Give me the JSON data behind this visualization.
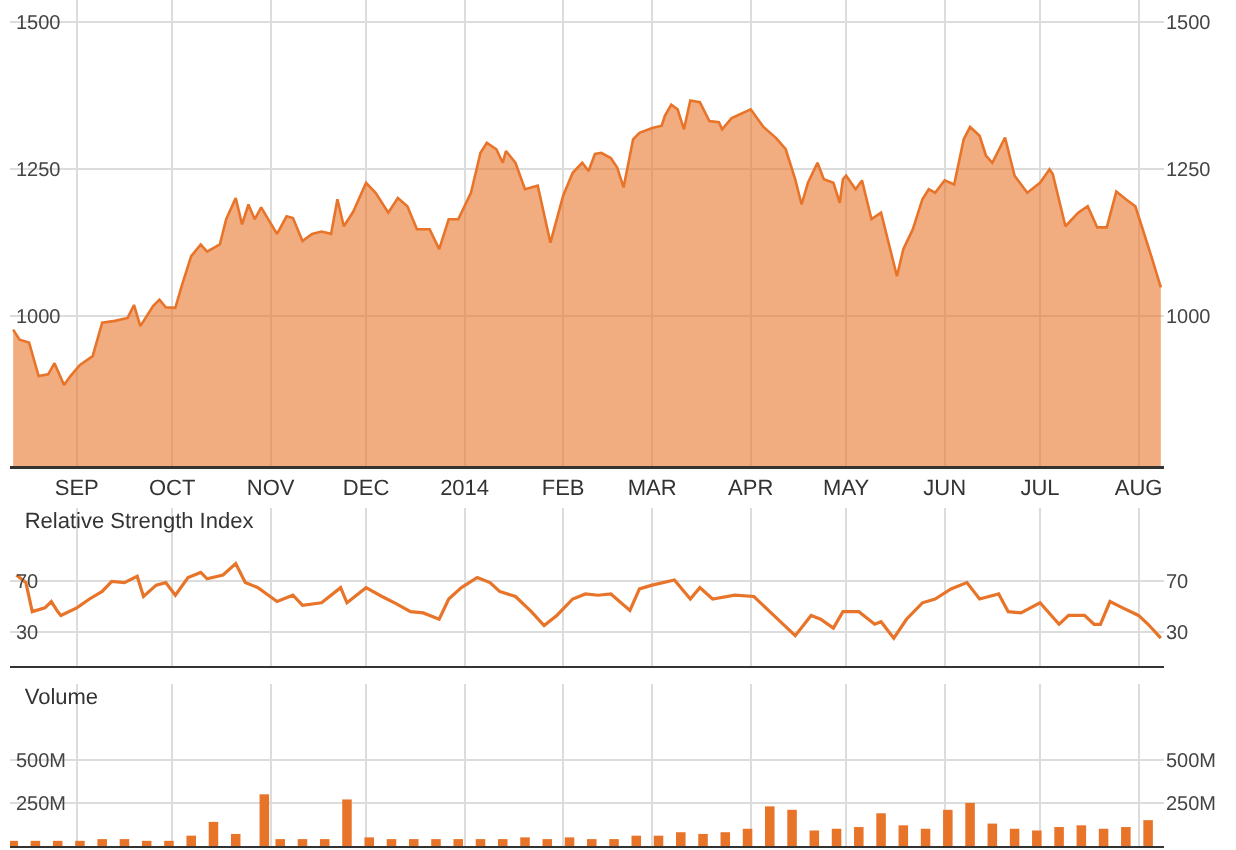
{
  "chart_data": [
    {
      "type": "area",
      "xlim": [
        "2013-08-11",
        "2014-08-09"
      ],
      "ylim": [
        745,
        1538
      ],
      "yticks": [
        1000,
        1250,
        1500
      ],
      "y2lim": [
        745,
        1538
      ],
      "y2ticks": [
        1000,
        1250,
        1500
      ],
      "grid": true,
      "xticks": [
        {
          "value": "2013-09-01",
          "label": "SEP"
        },
        {
          "value": "2013-10-01",
          "label": "OCT"
        },
        {
          "value": "2013-11-01",
          "label": "NOV"
        },
        {
          "value": "2013-12-01",
          "label": "DEC"
        },
        {
          "value": "2014-01-01",
          "label": "2014"
        },
        {
          "value": "2014-02-01",
          "label": "FEB"
        },
        {
          "value": "2014-03-01",
          "label": "MAR"
        },
        {
          "value": "2014-04-01",
          "label": "APR"
        },
        {
          "value": "2014-05-01",
          "label": "MAY"
        },
        {
          "value": "2014-06-01",
          "label": "JUN"
        },
        {
          "value": "2014-07-01",
          "label": "JUL"
        },
        {
          "value": "2014-08-01",
          "label": "AUG"
        }
      ],
      "series": [
        {
          "color": "#e8742a",
          "x": [
            "2013-08-12",
            "2013-08-14",
            "2013-08-17",
            "2013-08-20",
            "2013-08-23",
            "2013-08-25",
            "2013-08-28",
            "2013-08-30",
            "2013-09-02",
            "2013-09-06",
            "2013-09-09",
            "2013-09-13",
            "2013-09-17",
            "2013-09-19",
            "2013-09-21",
            "2013-09-25",
            "2013-09-27",
            "2013-09-29",
            "2013-10-02",
            "2013-10-04",
            "2013-10-07",
            "2013-10-10",
            "2013-10-12",
            "2013-10-16",
            "2013-10-18",
            "2013-10-21",
            "2013-10-23",
            "2013-10-25",
            "2013-10-27",
            "2013-10-29",
            "2013-11-03",
            "2013-11-06",
            "2013-11-08",
            "2013-11-11",
            "2013-11-14",
            "2013-11-17",
            "2013-11-20",
            "2013-11-22",
            "2013-11-24",
            "2013-11-27",
            "2013-12-01",
            "2013-12-04",
            "2013-12-08",
            "2013-12-11",
            "2013-12-14",
            "2013-12-17",
            "2013-12-21",
            "2013-12-24",
            "2013-12-27",
            "2013-12-30",
            "2014-01-03",
            "2014-01-06",
            "2014-01-08",
            "2014-01-11",
            "2014-01-13",
            "2014-01-14",
            "2014-01-17",
            "2014-01-20",
            "2014-01-24",
            "2014-01-28",
            "2014-02-01",
            "2014-02-04",
            "2014-02-07",
            "2014-02-09",
            "2014-02-11",
            "2014-02-13",
            "2014-02-16",
            "2014-02-18",
            "2014-02-20",
            "2014-02-23",
            "2014-02-25",
            "2014-03-01",
            "2014-03-04",
            "2014-03-05",
            "2014-03-07",
            "2014-03-09",
            "2014-03-11",
            "2014-03-13",
            "2014-03-16",
            "2014-03-19",
            "2014-03-22",
            "2014-03-23",
            "2014-03-26",
            "2014-04-01",
            "2014-04-05",
            "2014-04-09",
            "2014-04-12",
            "2014-04-15",
            "2014-04-17",
            "2014-04-19",
            "2014-04-22",
            "2014-04-24",
            "2014-04-27",
            "2014-04-29",
            "2014-04-30",
            "2014-05-01",
            "2014-05-04",
            "2014-05-06",
            "2014-05-09",
            "2014-05-12",
            "2014-05-17",
            "2014-05-19",
            "2014-05-22",
            "2014-05-25",
            "2014-05-27",
            "2014-05-29",
            "2014-06-01",
            "2014-06-04",
            "2014-06-07",
            "2014-06-09",
            "2014-06-12",
            "2014-06-14",
            "2014-06-16",
            "2014-06-20",
            "2014-06-23",
            "2014-06-27",
            "2014-07-01",
            "2014-07-04",
            "2014-07-05",
            "2014-07-09",
            "2014-07-13",
            "2014-07-16",
            "2014-07-19",
            "2014-07-22",
            "2014-07-25",
            "2014-07-28",
            "2014-07-31",
            "2014-08-02",
            "2014-08-05",
            "2014-08-08"
          ],
          "values": [
            977,
            960,
            955,
            898,
            901,
            920,
            883,
            898,
            917,
            932,
            989,
            992,
            997,
            1019,
            983,
            1017,
            1028,
            1015,
            1014,
            1051,
            1102,
            1122,
            1110,
            1122,
            1165,
            1201,
            1156,
            1190,
            1165,
            1185,
            1140,
            1170,
            1167,
            1128,
            1140,
            1144,
            1140,
            1199,
            1153,
            1178,
            1227,
            1210,
            1176,
            1201,
            1187,
            1148,
            1148,
            1114,
            1165,
            1165,
            1210,
            1278,
            1295,
            1284,
            1261,
            1281,
            1261,
            1216,
            1222,
            1125,
            1205,
            1244,
            1261,
            1247,
            1276,
            1278,
            1269,
            1253,
            1219,
            1301,
            1312,
            1320,
            1324,
            1341,
            1360,
            1352,
            1318,
            1367,
            1364,
            1332,
            1330,
            1318,
            1337,
            1352,
            1322,
            1303,
            1284,
            1233,
            1190,
            1227,
            1261,
            1233,
            1227,
            1193,
            1233,
            1239,
            1216,
            1231,
            1165,
            1176,
            1068,
            1114,
            1148,
            1199,
            1216,
            1210,
            1231,
            1224,
            1301,
            1322,
            1307,
            1273,
            1261,
            1304,
            1239,
            1210,
            1227,
            1250,
            1242,
            1153,
            1176,
            1187,
            1151,
            1151,
            1212,
            1199,
            1187,
            1153,
            1102,
            1049
          ]
        }
      ]
    },
    {
      "type": "line",
      "title": "Relative Strength Index",
      "tick_labels": "y",
      "xlim": [
        "2013-08-11",
        "2014-08-09"
      ],
      "ylim": [
        3,
        128
      ],
      "yticks": [
        30,
        70
      ],
      "y2lim": [
        3,
        128
      ],
      "y2ticks": [
        30,
        70
      ],
      "grid": true,
      "xticks": [
        {
          "value": "2013-09-01",
          "label": null
        },
        {
          "value": "2013-10-01",
          "label": null
        },
        {
          "value": "2013-11-01",
          "label": null
        },
        {
          "value": "2013-12-01",
          "label": null
        },
        {
          "value": "2014-01-01",
          "label": null
        },
        {
          "value": "2014-02-01",
          "label": null
        },
        {
          "value": "2014-03-01",
          "label": null
        },
        {
          "value": "2014-04-01",
          "label": null
        },
        {
          "value": "2014-05-01",
          "label": null
        },
        {
          "value": "2014-06-01",
          "label": null
        },
        {
          "value": "2014-07-01",
          "label": null
        },
        {
          "value": "2014-08-01",
          "label": null
        }
      ],
      "series": [
        {
          "color": "#e8742a",
          "x": [
            "2013-08-13",
            "2013-08-16",
            "2013-08-18",
            "2013-08-22",
            "2013-08-24",
            "2013-08-26",
            "2013-08-27",
            "2013-09-01",
            "2013-09-05",
            "2013-09-09",
            "2013-09-12",
            "2013-09-16",
            "2013-09-20",
            "2013-09-22",
            "2013-09-26",
            "2013-09-29",
            "2013-10-02",
            "2013-10-06",
            "2013-10-10",
            "2013-10-12",
            "2013-10-17",
            "2013-10-21",
            "2013-10-24",
            "2013-10-28",
            "2013-11-03",
            "2013-11-08",
            "2013-11-11",
            "2013-11-17",
            "2013-11-23",
            "2013-11-25",
            "2013-12-01",
            "2013-12-06",
            "2013-12-10",
            "2013-12-15",
            "2013-12-19",
            "2013-12-24",
            "2013-12-27",
            "2013-12-31",
            "2014-01-05",
            "2014-01-09",
            "2014-01-12",
            "2014-01-17",
            "2014-01-22",
            "2014-01-26",
            "2014-01-30",
            "2014-02-04",
            "2014-02-08",
            "2014-02-12",
            "2014-02-16",
            "2014-02-22",
            "2014-02-25",
            "2014-03-01",
            "2014-03-08",
            "2014-03-13",
            "2014-03-16",
            "2014-03-20",
            "2014-03-27",
            "2014-04-02",
            "2014-04-07",
            "2014-04-15",
            "2014-04-20",
            "2014-04-23",
            "2014-04-27",
            "2014-04-30",
            "2014-05-05",
            "2014-05-10",
            "2014-05-12",
            "2014-05-16",
            "2014-05-20",
            "2014-05-25",
            "2014-05-29",
            "2014-06-03",
            "2014-06-08",
            "2014-06-12",
            "2014-06-18",
            "2014-06-21",
            "2014-06-25",
            "2014-07-01",
            "2014-07-07",
            "2014-07-10",
            "2014-07-15",
            "2014-07-18",
            "2014-07-20",
            "2014-07-23",
            "2014-07-27",
            "2014-08-01",
            "2014-08-04",
            "2014-08-08"
          ],
          "values": [
            75,
            69,
            46,
            49,
            54,
            46,
            43,
            49,
            56,
            62,
            70,
            69,
            74,
            58,
            67,
            69,
            59,
            73,
            77,
            72,
            75,
            84,
            69,
            65,
            54,
            59,
            51,
            53,
            65,
            53,
            65,
            58,
            53,
            46,
            45,
            40,
            56,
            65,
            73,
            69,
            62,
            58,
            46,
            35,
            43,
            56,
            60,
            59,
            60,
            47,
            64,
            67,
            71,
            56,
            65,
            56,
            59,
            58,
            46,
            27,
            43,
            40,
            33,
            46,
            46,
            36,
            38,
            25,
            40,
            53,
            56,
            64,
            69,
            56,
            60,
            46,
            45,
            53,
            36,
            43,
            43,
            36,
            36,
            54,
            49,
            43,
            36,
            25
          ]
        }
      ]
    },
    {
      "type": "bar",
      "title": "Volume",
      "tick_labels": "y",
      "xlim": [
        "2013-08-11",
        "2014-08-09"
      ],
      "ylim": [
        0,
        940
      ],
      "yticks": [
        {
          "value": 250,
          "label": "250M"
        },
        {
          "value": 500,
          "label": "500M"
        }
      ],
      "y2lim": [
        0,
        940
      ],
      "y2ticks": [
        {
          "value": 250,
          "label": "250M"
        },
        {
          "value": 500,
          "label": "500M"
        }
      ],
      "grid": true,
      "xticks": [
        {
          "value": "2013-09-01",
          "label": null
        },
        {
          "value": "2013-10-01",
          "label": null
        },
        {
          "value": "2013-11-01",
          "label": null
        },
        {
          "value": "2013-12-01",
          "label": null
        },
        {
          "value": "2014-01-01",
          "label": null
        },
        {
          "value": "2014-02-01",
          "label": null
        },
        {
          "value": "2014-03-01",
          "label": null
        },
        {
          "value": "2014-04-01",
          "label": null
        },
        {
          "value": "2014-05-01",
          "label": null
        },
        {
          "value": "2014-06-01",
          "label": null
        },
        {
          "value": "2014-07-01",
          "label": null
        },
        {
          "value": "2014-08-01",
          "label": null
        }
      ],
      "series": [
        {
          "color": "#e8742a",
          "x": [
            "2013-08-12",
            "2013-08-19",
            "2013-08-26",
            "2013-09-02",
            "2013-09-09",
            "2013-09-16",
            "2013-09-23",
            "2013-09-30",
            "2013-10-07",
            "2013-10-14",
            "2013-10-21",
            "2013-10-30",
            "2013-11-04",
            "2013-11-11",
            "2013-11-18",
            "2013-11-25",
            "2013-12-02",
            "2013-12-09",
            "2013-12-16",
            "2013-12-23",
            "2013-12-30",
            "2014-01-06",
            "2014-01-13",
            "2014-01-20",
            "2014-01-27",
            "2014-02-03",
            "2014-02-10",
            "2014-02-17",
            "2014-02-24",
            "2014-03-03",
            "2014-03-10",
            "2014-03-17",
            "2014-03-24",
            "2014-03-31",
            "2014-04-07",
            "2014-04-14",
            "2014-04-21",
            "2014-04-28",
            "2014-05-05",
            "2014-05-12",
            "2014-05-19",
            "2014-05-26",
            "2014-06-02",
            "2014-06-09",
            "2014-06-16",
            "2014-06-23",
            "2014-06-30",
            "2014-07-07",
            "2014-07-14",
            "2014-07-21",
            "2014-07-28",
            "2014-08-04"
          ],
          "values": [
            30,
            30,
            30,
            30,
            40,
            40,
            30,
            30,
            60,
            140,
            70,
            300,
            40,
            40,
            40,
            270,
            50,
            40,
            40,
            40,
            40,
            40,
            40,
            50,
            40,
            50,
            40,
            40,
            60,
            60,
            80,
            70,
            80,
            100,
            230,
            210,
            90,
            100,
            110,
            190,
            120,
            100,
            210,
            250,
            130,
            100,
            90,
            110,
            120,
            100,
            110,
            150
          ]
        }
      ]
    }
  ]
}
